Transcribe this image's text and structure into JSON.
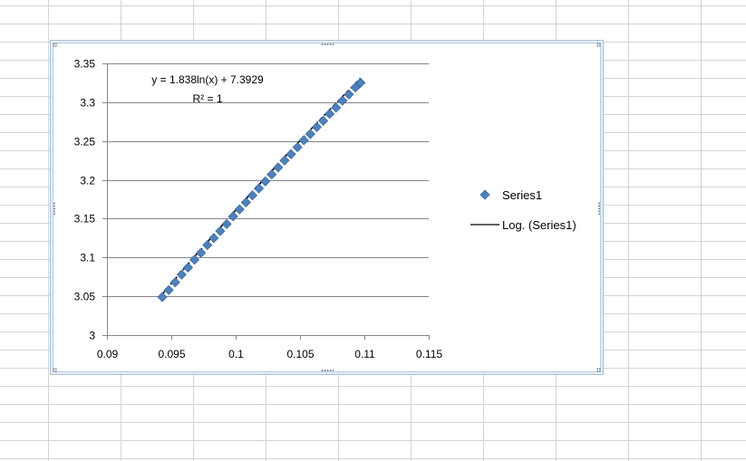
{
  "chart_data": {
    "type": "scatter",
    "title": "",
    "xlabel": "",
    "ylabel": "",
    "xlim": [
      0.09,
      0.115
    ],
    "ylim": [
      3,
      3.35
    ],
    "x_ticks": [
      "0.09",
      "0.095",
      "0.1",
      "0.105",
      "0.11",
      "0.115"
    ],
    "y_ticks": [
      "3",
      "3.05",
      "3.1",
      "3.15",
      "3.2",
      "3.25",
      "3.3",
      "3.35"
    ],
    "grid": "horizontal major gridlines",
    "legend_position": "right",
    "series": [
      {
        "name": "Series1",
        "marker": "diamond",
        "color": "#4f81bd",
        "x": [
          0.0943,
          0.0948,
          0.0953,
          0.0958,
          0.0963,
          0.0968,
          0.0973,
          0.0978,
          0.0983,
          0.0988,
          0.0993,
          0.0998,
          0.1003,
          0.1008,
          0.1013,
          0.1018,
          0.1023,
          0.1028,
          0.1033,
          0.1038,
          0.1043,
          0.1048,
          0.1053,
          0.1058,
          0.1063,
          0.1068,
          0.1073,
          0.1078,
          0.1083,
          0.1088,
          0.1093,
          0.1097
        ],
        "y": [
          3.049,
          3.058,
          3.068,
          3.078,
          3.087,
          3.097,
          3.106,
          3.116,
          3.125,
          3.134,
          3.143,
          3.153,
          3.162,
          3.171,
          3.18,
          3.189,
          3.198,
          3.207,
          3.216,
          3.225,
          3.233,
          3.242,
          3.251,
          3.259,
          3.268,
          3.276,
          3.285,
          3.293,
          3.302,
          3.31,
          3.319,
          3.325
        ]
      }
    ],
    "trendline": {
      "name": "Log. (Series1)",
      "type": "logarithmic",
      "a": 1.838,
      "b": 7.3929,
      "color": "#000000",
      "equation_label": "y = 1.838ln(x) + 7.3929",
      "r2_label": "R² = 1"
    }
  }
}
